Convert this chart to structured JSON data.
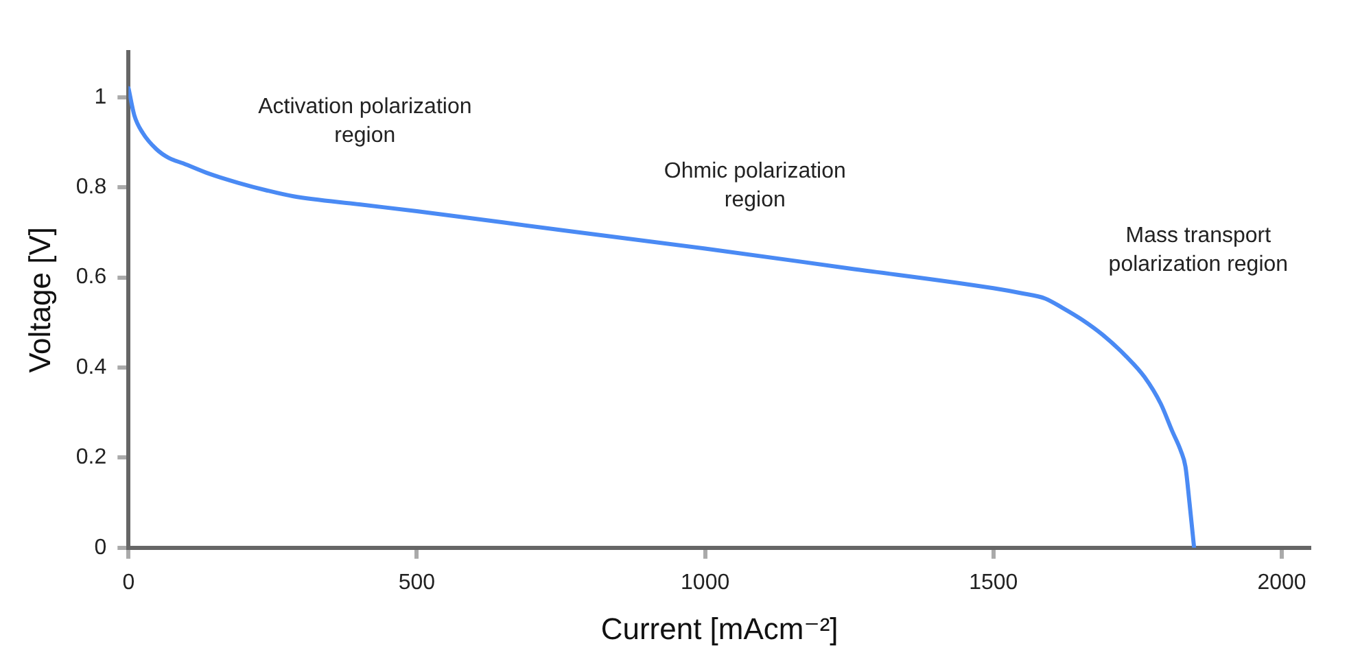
{
  "chart_data": {
    "type": "line",
    "xlabel": "Current [mAcm⁻²]",
    "ylabel": "Voltage [V]",
    "series": [
      {
        "color": "#4a8af4",
        "x": [
          0,
          10,
          25,
          48,
          70,
          95,
          140,
          190,
          240,
          286,
          400,
          500,
          750,
          1000,
          1250,
          1500,
          1548,
          1590,
          1619,
          1655,
          1690,
          1730,
          1762,
          1790,
          1810,
          1825,
          1833,
          1840,
          1848
        ],
        "values": [
          1.02,
          0.96,
          0.92,
          0.885,
          0.865,
          0.853,
          0.83,
          0.81,
          0.793,
          0.78,
          0.762,
          0.747,
          0.705,
          0.664,
          0.62,
          0.576,
          0.565,
          0.553,
          0.533,
          0.505,
          0.472,
          0.425,
          0.379,
          0.32,
          0.259,
          0.215,
          0.18,
          0.1,
          0
        ]
      }
    ],
    "xlim": [
      0,
      2050
    ],
    "ylim": [
      0,
      1.1
    ],
    "xticks": [
      0,
      500,
      1000,
      1500,
      2000
    ],
    "yticks": [
      0,
      0.2,
      0.4,
      0.6,
      0.8,
      1
    ],
    "grid": false,
    "legend": false,
    "marker": "none",
    "line_style": "solid",
    "annotations": [
      "Activation polarization region",
      "Ohmic polarization region",
      "Mass transport polarization region"
    ]
  }
}
